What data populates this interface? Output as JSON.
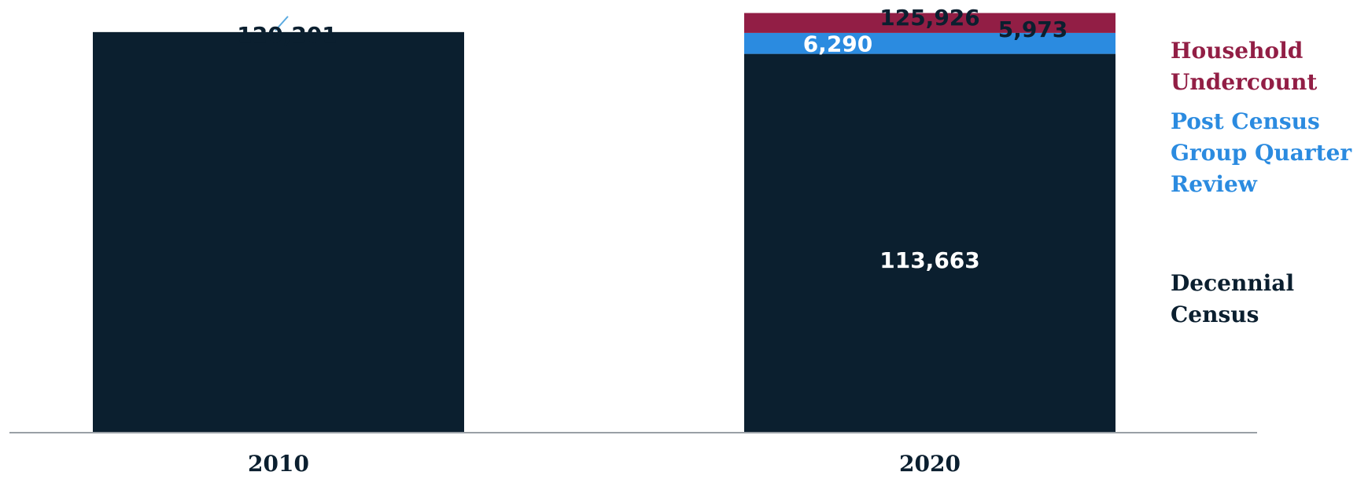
{
  "chart_data": {
    "type": "bar",
    "stacked": true,
    "categories": [
      "2010",
      "2020"
    ],
    "series": [
      {
        "name": "Decennial Census",
        "values": [
          120201,
          113663
        ],
        "color": "#0b1f2f"
      },
      {
        "name": "Post Census Group Quarter Review",
        "values": [
          0,
          6290
        ],
        "color": "#2b8be0"
      },
      {
        "name": "Household Undercount",
        "values": [
          0,
          5973
        ],
        "color": "#921e45"
      }
    ],
    "totals": [
      120201,
      125926
    ],
    "data_labels": {
      "totals": [
        "120,201",
        "125,926"
      ],
      "decennial_2020": "113,663",
      "post_census_2020": "6,290",
      "household_2020": "5,973"
    },
    "legend": {
      "placement": "right",
      "entries": [
        {
          "lines": [
            "Household",
            "Undercount"
          ],
          "color": "#921e45"
        },
        {
          "lines": [
            "Post Census",
            "Group Quarter",
            "Review"
          ],
          "color": "#2b8be0"
        },
        {
          "lines": [
            "Decennial",
            "Census"
          ],
          "color": "#0b1f2f"
        }
      ]
    },
    "ylim": [
      0,
      127000
    ],
    "grid": false,
    "title": "",
    "xlabel": "",
    "ylabel": "",
    "axis_color": "#9aa0a6",
    "leader_line_color": "#5aaae0"
  }
}
